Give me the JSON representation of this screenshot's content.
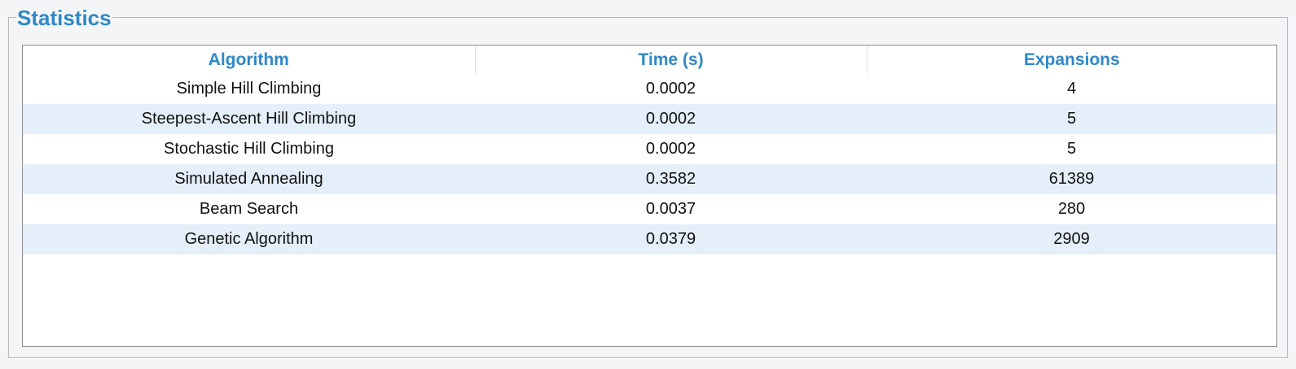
{
  "groupbox": {
    "title": "Statistics"
  },
  "table": {
    "headers": [
      "Algorithm",
      "Time (s)",
      "Expansions"
    ],
    "rows": [
      [
        "Simple Hill Climbing",
        "0.0002",
        "4"
      ],
      [
        "Steepest-Ascent Hill Climbing",
        "0.0002",
        "5"
      ],
      [
        "Stochastic Hill Climbing",
        "0.0002",
        "5"
      ],
      [
        "Simulated Annealing",
        "0.3582",
        "61389"
      ],
      [
        "Beam Search",
        "0.0037",
        "280"
      ],
      [
        "Genetic Algorithm",
        "0.0379",
        "2909"
      ]
    ]
  },
  "colors": {
    "accent": "#2e88c8",
    "alt_row": "#e5eff9",
    "background": "#f4f5f7"
  }
}
